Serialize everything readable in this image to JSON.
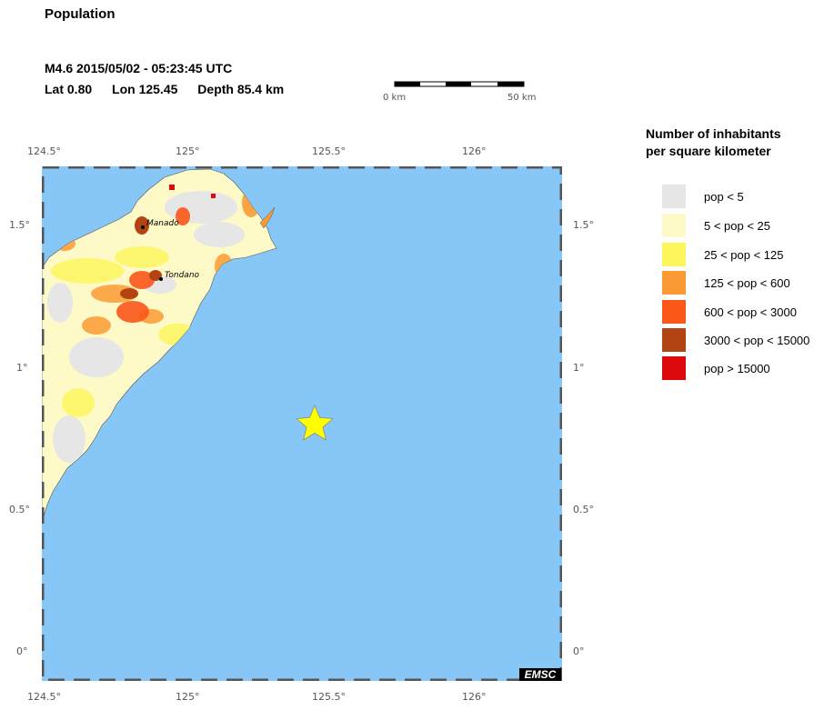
{
  "header": {
    "title": "Population",
    "event_line": "M4.6  2015/05/02 - 05:23:45 UTC",
    "lat": "Lat  0.80",
    "lon": "Lon 125.45",
    "depth": "Depth  85.4 km"
  },
  "scale_bar": {
    "start_label": "0 km",
    "end_label": "50 km"
  },
  "axes": {
    "lon_ticks": [
      "124.5°",
      "125°",
      "125.5°",
      "126°"
    ],
    "lat_ticks": [
      "1.5°",
      "1°",
      "0.5°",
      "0°"
    ]
  },
  "map": {
    "sea_color": "#87c7f8",
    "cities": [
      {
        "name": "Manado"
      },
      {
        "name": "Tondano"
      }
    ],
    "epicenter": {
      "lat": 0.8,
      "lon": 125.45,
      "marker": "star-icon",
      "color": "#ffff00"
    },
    "credit": "EMSC"
  },
  "legend": {
    "title_line1": "Number of inhabitants",
    "title_line2": "per square kilometer",
    "items": [
      {
        "label": "pop < 5",
        "color": "#e6e6e6"
      },
      {
        "label": "5 < pop < 25",
        "color": "#fdfac8"
      },
      {
        "label": "25 < pop < 125",
        "color": "#fdf65a"
      },
      {
        "label": "125 < pop < 600",
        "color": "#fb9a35"
      },
      {
        "label": "600 < pop < 3000",
        "color": "#fb5718"
      },
      {
        "label": "3000 < pop < 15000",
        "color": "#b24313"
      },
      {
        "label": "pop > 15000",
        "color": "#dc0a0a"
      }
    ]
  }
}
